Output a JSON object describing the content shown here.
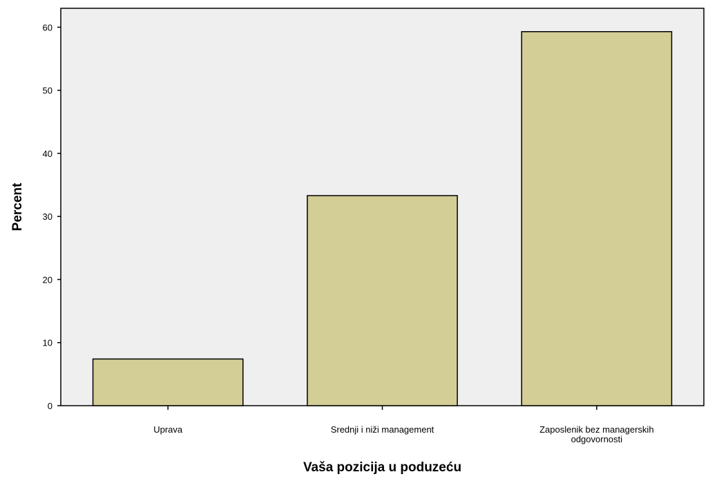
{
  "chart_data": {
    "type": "bar",
    "xlabel": "Vaša pozicija u poduzeću",
    "ylabel": "Percent",
    "categories": [
      [
        "Uprava"
      ],
      [
        "Srednji i niži management"
      ],
      [
        "Zaposlenik bez managerskih",
        "odgovornosti"
      ]
    ],
    "values": [
      7.4,
      33.3,
      59.3
    ],
    "ylim": [
      0,
      63
    ],
    "yticks": [
      0,
      10,
      20,
      30,
      40,
      50,
      60
    ],
    "grid": false,
    "legend": "none",
    "colors": {
      "bar_fill": "#d3cd96",
      "bar_stroke": "#000000",
      "plot_background": "#efefef",
      "page_background": "#ffffff"
    }
  }
}
